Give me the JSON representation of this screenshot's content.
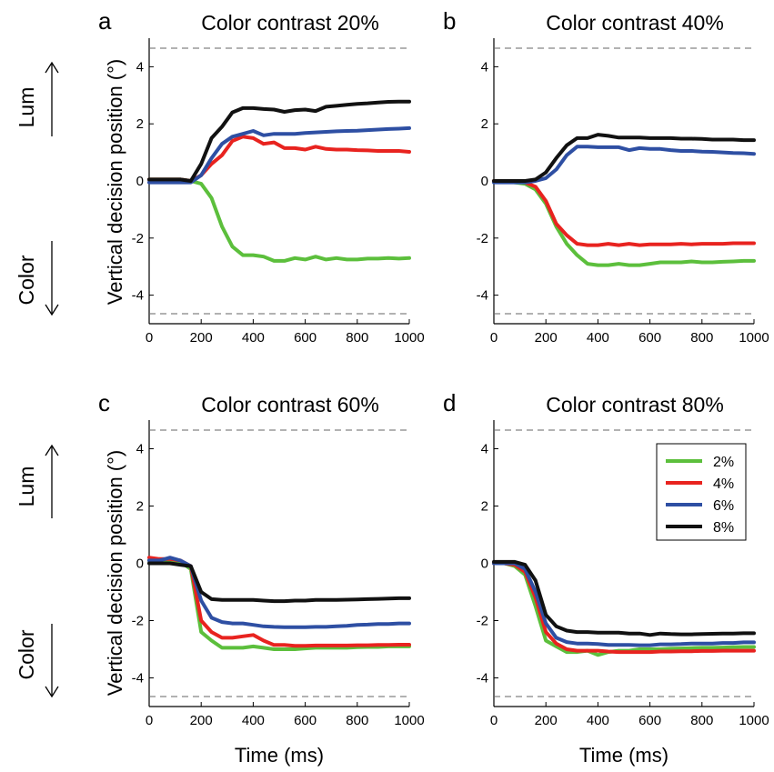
{
  "figure": {
    "ylabel": "Vertical decision position (°)",
    "xlabel": "Time (ms)",
    "side_labels": {
      "up": "Lum",
      "down": "Color"
    }
  },
  "legend": {
    "entries": [
      {
        "label": "2%",
        "color": "#5cbf3c"
      },
      {
        "label": "4%",
        "color": "#e8231f"
      },
      {
        "label": "6%",
        "color": "#2e4fa3"
      },
      {
        "label": "8%",
        "color": "#111111"
      }
    ],
    "placement": "top-right of panel d"
  },
  "chart_data": [
    {
      "type": "line",
      "letter": "a",
      "title": "Color contrast 20%",
      "xlim": [
        0,
        1000
      ],
      "ylim": [
        -5,
        5
      ],
      "xticks": [
        0,
        200,
        400,
        600,
        800,
        1000
      ],
      "yticks": [
        -4,
        -2,
        0,
        2,
        4
      ],
      "reference_lines": [
        4.65,
        -4.65
      ],
      "series": [
        {
          "name": "2%",
          "color": "#5cbf3c",
          "x": [
            0,
            40,
            80,
            120,
            160,
            200,
            240,
            280,
            320,
            360,
            400,
            440,
            480,
            520,
            560,
            600,
            640,
            680,
            720,
            760,
            800,
            840,
            880,
            920,
            960,
            1000
          ],
          "y": [
            0.05,
            0.05,
            0.05,
            0.05,
            0,
            -0.1,
            -0.6,
            -1.6,
            -2.3,
            -2.6,
            -2.6,
            -2.65,
            -2.8,
            -2.8,
            -2.7,
            -2.75,
            -2.65,
            -2.75,
            -2.7,
            -2.75,
            -2.75,
            -2.72,
            -2.72,
            -2.7,
            -2.72,
            -2.7
          ]
        },
        {
          "name": "4%",
          "color": "#e8231f",
          "x": [
            0,
            40,
            80,
            120,
            160,
            200,
            240,
            280,
            320,
            360,
            400,
            440,
            480,
            520,
            560,
            600,
            640,
            680,
            720,
            760,
            800,
            840,
            880,
            920,
            960,
            1000
          ],
          "y": [
            0.05,
            0.05,
            0.05,
            0.05,
            0,
            0.2,
            0.6,
            0.9,
            1.4,
            1.55,
            1.5,
            1.3,
            1.35,
            1.15,
            1.15,
            1.1,
            1.2,
            1.12,
            1.1,
            1.1,
            1.08,
            1.07,
            1.05,
            1.05,
            1.05,
            1.02
          ]
        },
        {
          "name": "6%",
          "color": "#2e4fa3",
          "x": [
            0,
            40,
            80,
            120,
            160,
            200,
            240,
            280,
            320,
            360,
            400,
            440,
            480,
            520,
            560,
            600,
            640,
            680,
            720,
            760,
            800,
            840,
            880,
            920,
            960,
            1000
          ],
          "y": [
            -0.05,
            -0.05,
            -0.05,
            -0.05,
            -0.05,
            0.2,
            0.8,
            1.3,
            1.55,
            1.65,
            1.75,
            1.6,
            1.65,
            1.65,
            1.65,
            1.68,
            1.7,
            1.72,
            1.74,
            1.75,
            1.76,
            1.78,
            1.8,
            1.82,
            1.83,
            1.85
          ]
        },
        {
          "name": "8%",
          "color": "#111111",
          "x": [
            0,
            40,
            80,
            120,
            160,
            200,
            240,
            280,
            320,
            360,
            400,
            440,
            480,
            520,
            560,
            600,
            640,
            680,
            720,
            760,
            800,
            840,
            880,
            920,
            960,
            1000
          ],
          "y": [
            0.05,
            0.05,
            0.05,
            0.05,
            0,
            0.6,
            1.5,
            1.9,
            2.4,
            2.55,
            2.55,
            2.52,
            2.5,
            2.42,
            2.48,
            2.5,
            2.45,
            2.6,
            2.63,
            2.67,
            2.7,
            2.72,
            2.75,
            2.77,
            2.78,
            2.78
          ]
        }
      ]
    },
    {
      "type": "line",
      "letter": "b",
      "title": "Color contrast 40%",
      "xlim": [
        0,
        1000
      ],
      "ylim": [
        -5,
        5
      ],
      "xticks": [
        0,
        200,
        400,
        600,
        800,
        1000
      ],
      "yticks": [
        -4,
        -2,
        0,
        2,
        4
      ],
      "reference_lines": [
        4.65,
        -4.65
      ],
      "series": [
        {
          "name": "2%",
          "color": "#5cbf3c",
          "x": [
            0,
            40,
            80,
            120,
            160,
            200,
            240,
            280,
            320,
            360,
            400,
            440,
            480,
            520,
            560,
            600,
            640,
            680,
            720,
            760,
            800,
            840,
            880,
            920,
            960,
            1000
          ],
          "y": [
            0,
            0,
            -0.05,
            -0.1,
            -0.3,
            -0.8,
            -1.6,
            -2.2,
            -2.6,
            -2.9,
            -2.95,
            -2.95,
            -2.9,
            -2.95,
            -2.95,
            -2.9,
            -2.85,
            -2.85,
            -2.85,
            -2.82,
            -2.85,
            -2.85,
            -2.83,
            -2.82,
            -2.8,
            -2.8
          ]
        },
        {
          "name": "4%",
          "color": "#e8231f",
          "x": [
            0,
            40,
            80,
            120,
            160,
            200,
            240,
            280,
            320,
            360,
            400,
            440,
            480,
            520,
            560,
            600,
            640,
            680,
            720,
            760,
            800,
            840,
            880,
            920,
            960,
            1000
          ],
          "y": [
            0,
            0,
            0,
            -0.05,
            -0.2,
            -0.7,
            -1.5,
            -1.9,
            -2.2,
            -2.25,
            -2.25,
            -2.2,
            -2.25,
            -2.2,
            -2.25,
            -2.22,
            -2.22,
            -2.22,
            -2.2,
            -2.22,
            -2.2,
            -2.2,
            -2.2,
            -2.18,
            -2.18,
            -2.18
          ]
        },
        {
          "name": "6%",
          "color": "#2e4fa3",
          "x": [
            0,
            40,
            80,
            120,
            160,
            200,
            240,
            280,
            320,
            360,
            400,
            440,
            480,
            520,
            560,
            600,
            640,
            680,
            720,
            760,
            800,
            840,
            880,
            920,
            960,
            1000
          ],
          "y": [
            -0.05,
            -0.05,
            -0.05,
            -0.05,
            0,
            0.1,
            0.4,
            0.9,
            1.2,
            1.2,
            1.18,
            1.18,
            1.18,
            1.08,
            1.15,
            1.12,
            1.12,
            1.08,
            1.05,
            1.05,
            1.03,
            1.02,
            1.0,
            0.98,
            0.97,
            0.95
          ]
        },
        {
          "name": "8%",
          "color": "#111111",
          "x": [
            0,
            40,
            80,
            120,
            160,
            200,
            240,
            280,
            320,
            360,
            400,
            440,
            480,
            520,
            560,
            600,
            640,
            680,
            720,
            760,
            800,
            840,
            880,
            920,
            960,
            1000
          ],
          "y": [
            0,
            0,
            0,
            0,
            0.05,
            0.3,
            0.8,
            1.25,
            1.5,
            1.5,
            1.62,
            1.58,
            1.52,
            1.52,
            1.52,
            1.5,
            1.5,
            1.5,
            1.48,
            1.48,
            1.47,
            1.45,
            1.45,
            1.45,
            1.43,
            1.43
          ]
        }
      ]
    },
    {
      "type": "line",
      "letter": "c",
      "title": "Color contrast 60%",
      "xlim": [
        0,
        1000
      ],
      "ylim": [
        -5,
        5
      ],
      "xticks": [
        0,
        200,
        400,
        600,
        800,
        1000
      ],
      "yticks": [
        -4,
        -2,
        0,
        2,
        4
      ],
      "reference_lines": [
        4.65,
        -4.65
      ],
      "series": [
        {
          "name": "2%",
          "color": "#5cbf3c",
          "x": [
            0,
            40,
            80,
            120,
            160,
            200,
            240,
            280,
            320,
            360,
            400,
            440,
            480,
            520,
            560,
            600,
            640,
            680,
            720,
            760,
            800,
            840,
            880,
            920,
            960,
            1000
          ],
          "y": [
            0.1,
            0.15,
            0.1,
            0.05,
            -0.2,
            -2.4,
            -2.7,
            -2.95,
            -2.95,
            -2.95,
            -2.9,
            -2.95,
            -3.0,
            -3.0,
            -3.0,
            -2.97,
            -2.95,
            -2.95,
            -2.95,
            -2.95,
            -2.93,
            -2.92,
            -2.92,
            -2.9,
            -2.9,
            -2.9
          ]
        },
        {
          "name": "4%",
          "color": "#e8231f",
          "x": [
            0,
            40,
            80,
            120,
            160,
            200,
            240,
            280,
            320,
            360,
            400,
            440,
            480,
            520,
            560,
            600,
            640,
            680,
            720,
            760,
            800,
            840,
            880,
            920,
            960,
            1000
          ],
          "y": [
            0.2,
            0.15,
            0.15,
            0.1,
            -0.1,
            -2.0,
            -2.4,
            -2.6,
            -2.6,
            -2.55,
            -2.5,
            -2.7,
            -2.85,
            -2.85,
            -2.88,
            -2.88,
            -2.87,
            -2.87,
            -2.87,
            -2.87,
            -2.86,
            -2.86,
            -2.85,
            -2.85,
            -2.84,
            -2.84
          ]
        },
        {
          "name": "6%",
          "color": "#2e4fa3",
          "x": [
            0,
            40,
            80,
            120,
            160,
            200,
            240,
            280,
            320,
            360,
            400,
            440,
            480,
            520,
            560,
            600,
            640,
            680,
            720,
            760,
            800,
            840,
            880,
            920,
            960,
            1000
          ],
          "y": [
            0.1,
            0.1,
            0.2,
            0.1,
            -0.1,
            -1.3,
            -1.9,
            -2.05,
            -2.1,
            -2.1,
            -2.15,
            -2.2,
            -2.22,
            -2.23,
            -2.23,
            -2.23,
            -2.22,
            -2.22,
            -2.2,
            -2.18,
            -2.15,
            -2.14,
            -2.12,
            -2.12,
            -2.1,
            -2.1
          ]
        },
        {
          "name": "8%",
          "color": "#111111",
          "x": [
            0,
            40,
            80,
            120,
            160,
            200,
            240,
            280,
            320,
            360,
            400,
            440,
            480,
            520,
            560,
            600,
            640,
            680,
            720,
            760,
            800,
            840,
            880,
            920,
            960,
            1000
          ],
          "y": [
            0,
            0,
            0,
            -0.05,
            -0.1,
            -1.0,
            -1.25,
            -1.28,
            -1.28,
            -1.28,
            -1.28,
            -1.3,
            -1.32,
            -1.32,
            -1.3,
            -1.3,
            -1.28,
            -1.28,
            -1.28,
            -1.27,
            -1.26,
            -1.25,
            -1.24,
            -1.23,
            -1.22,
            -1.22
          ]
        }
      ]
    },
    {
      "type": "line",
      "letter": "d",
      "title": "Color contrast 80%",
      "xlim": [
        0,
        1000
      ],
      "ylim": [
        -5,
        5
      ],
      "xticks": [
        0,
        200,
        400,
        600,
        800,
        1000
      ],
      "yticks": [
        -4,
        -2,
        0,
        2,
        4
      ],
      "reference_lines": [
        4.65,
        -4.65
      ],
      "series": [
        {
          "name": "2%",
          "color": "#5cbf3c",
          "x": [
            0,
            40,
            80,
            120,
            160,
            200,
            240,
            280,
            320,
            360,
            400,
            440,
            480,
            520,
            560,
            600,
            640,
            680,
            720,
            760,
            800,
            840,
            880,
            920,
            960,
            1000
          ],
          "y": [
            0,
            0,
            -0.1,
            -0.4,
            -1.5,
            -2.7,
            -2.9,
            -3.1,
            -3.1,
            -3.05,
            -3.2,
            -3.1,
            -3.05,
            -3.05,
            -3.0,
            -3.0,
            -3.0,
            -2.98,
            -2.97,
            -2.96,
            -2.95,
            -2.95,
            -2.94,
            -2.93,
            -2.92,
            -2.92
          ]
        },
        {
          "name": "4%",
          "color": "#e8231f",
          "x": [
            0,
            40,
            80,
            120,
            160,
            200,
            240,
            280,
            320,
            360,
            400,
            440,
            480,
            520,
            560,
            600,
            640,
            680,
            720,
            760,
            800,
            840,
            880,
            920,
            960,
            1000
          ],
          "y": [
            0,
            0,
            -0.05,
            -0.3,
            -1.2,
            -2.4,
            -2.8,
            -3.0,
            -3.05,
            -3.05,
            -3.05,
            -3.08,
            -3.1,
            -3.1,
            -3.1,
            -3.1,
            -3.08,
            -3.08,
            -3.07,
            -3.07,
            -3.06,
            -3.06,
            -3.05,
            -3.05,
            -3.05,
            -3.05
          ]
        },
        {
          "name": "6%",
          "color": "#2e4fa3",
          "x": [
            0,
            40,
            80,
            120,
            160,
            200,
            240,
            280,
            320,
            360,
            400,
            440,
            480,
            520,
            560,
            600,
            640,
            680,
            720,
            760,
            800,
            840,
            880,
            920,
            960,
            1000
          ],
          "y": [
            0,
            0,
            0,
            -0.2,
            -1.0,
            -2.1,
            -2.6,
            -2.75,
            -2.8,
            -2.8,
            -2.82,
            -2.85,
            -2.85,
            -2.85,
            -2.86,
            -2.86,
            -2.83,
            -2.83,
            -2.82,
            -2.8,
            -2.8,
            -2.8,
            -2.78,
            -2.78,
            -2.76,
            -2.76
          ]
        },
        {
          "name": "8%",
          "color": "#111111",
          "x": [
            0,
            40,
            80,
            120,
            160,
            200,
            240,
            280,
            320,
            360,
            400,
            440,
            480,
            520,
            560,
            600,
            640,
            680,
            720,
            760,
            800,
            840,
            880,
            920,
            960,
            1000
          ],
          "y": [
            0.05,
            0.05,
            0.05,
            -0.05,
            -0.6,
            -1.8,
            -2.2,
            -2.35,
            -2.4,
            -2.4,
            -2.42,
            -2.42,
            -2.42,
            -2.45,
            -2.45,
            -2.5,
            -2.45,
            -2.47,
            -2.48,
            -2.48,
            -2.47,
            -2.46,
            -2.45,
            -2.45,
            -2.44,
            -2.44
          ]
        }
      ]
    }
  ]
}
